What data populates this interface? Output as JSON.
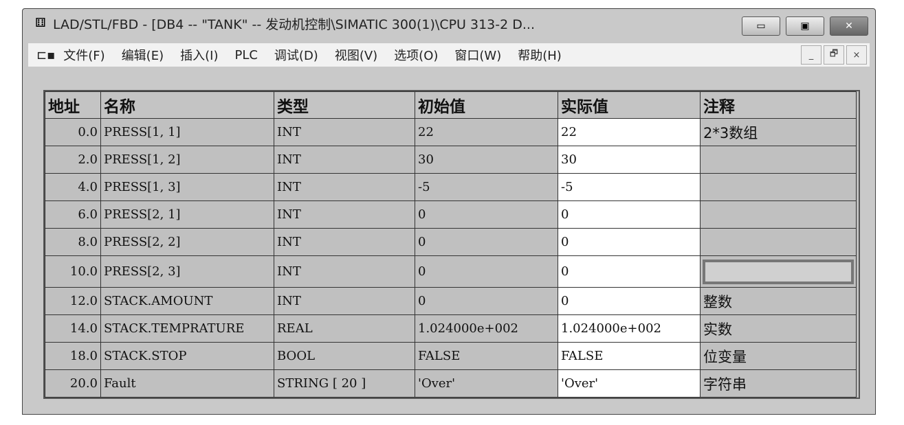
{
  "window": {
    "title": "LAD/STL/FBD  - [DB4 -- \"TANK\" -- 发动机控制\\SIMATIC 300(1)\\CPU 313-2 D...",
    "minimize": "▭",
    "maximize": "▣",
    "close": "✕"
  },
  "menu": [
    "文件(F)",
    "编辑(E)",
    "插入(I)",
    "PLC",
    "调试(D)",
    "视图(V)",
    "选项(O)",
    "窗口(W)",
    "帮助(H)"
  ],
  "mdi": {
    "minimize": "_",
    "restore": "🗗",
    "close": "×"
  },
  "table": {
    "headers": [
      "地址",
      "名称",
      "类型",
      "初始值",
      "实际值",
      "注释"
    ],
    "rows": [
      [
        "0.0",
        "PRESS[1, 1]",
        "INT",
        "22",
        "22",
        "2*3数组"
      ],
      [
        "2.0",
        "PRESS[1, 2]",
        "INT",
        "30",
        "30",
        ""
      ],
      [
        "4.0",
        "PRESS[1, 3]",
        "INT",
        "-5",
        "-5",
        ""
      ],
      [
        "6.0",
        "PRESS[2, 1]",
        "INT",
        "0",
        "0",
        ""
      ],
      [
        "8.0",
        "PRESS[2, 2]",
        "INT",
        "0",
        "0",
        ""
      ],
      [
        "10.0",
        "PRESS[2, 3]",
        "INT",
        "0",
        "0",
        ""
      ],
      [
        "12.0",
        "STACK.AMOUNT",
        "INT",
        "0",
        "0",
        "整数"
      ],
      [
        "14.0",
        "STACK.TEMPRATURE",
        "REAL",
        "1.024000e+002",
        "1.024000e+002",
        "实数"
      ],
      [
        "18.0",
        "STACK.STOP",
        "BOOL",
        "FALSE",
        "FALSE",
        "位变量"
      ],
      [
        "20.0",
        "Fault",
        "STRING [ 20 ]",
        "'Over'",
        "'Over'",
        "字符串"
      ]
    ]
  }
}
